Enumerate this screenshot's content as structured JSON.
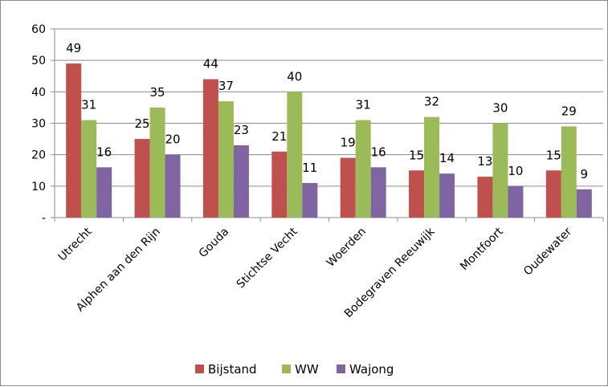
{
  "chart_data": {
    "type": "bar",
    "title": "",
    "xlabel": "",
    "ylabel": "",
    "categories": [
      "Utrecht",
      "Alphen aan den Rijn",
      "Gouda",
      "Stichtse Vecht",
      "Woerden",
      "Bodegraven Reeuwijk",
      "Montfoort",
      "Oudewater"
    ],
    "series": [
      {
        "name": "Bijstand",
        "color": "#c0504d",
        "values": [
          49,
          25,
          44,
          21,
          19,
          15,
          13,
          15
        ]
      },
      {
        "name": "WW",
        "color": "#9bbb59",
        "values": [
          31,
          35,
          37,
          40,
          31,
          32,
          30,
          29
        ]
      },
      {
        "name": "Wajong",
        "color": "#8064a2",
        "values": [
          16,
          20,
          23,
          11,
          16,
          14,
          10,
          9
        ]
      }
    ],
    "ylim": [
      0,
      60
    ],
    "yticks": [
      0,
      10,
      20,
      30,
      40,
      50,
      60
    ],
    "ytick_labels": [
      "-",
      "10",
      "20",
      "30",
      "40",
      "50",
      "60"
    ],
    "grid": true,
    "legend_position": "bottom",
    "data_labels": true
  }
}
